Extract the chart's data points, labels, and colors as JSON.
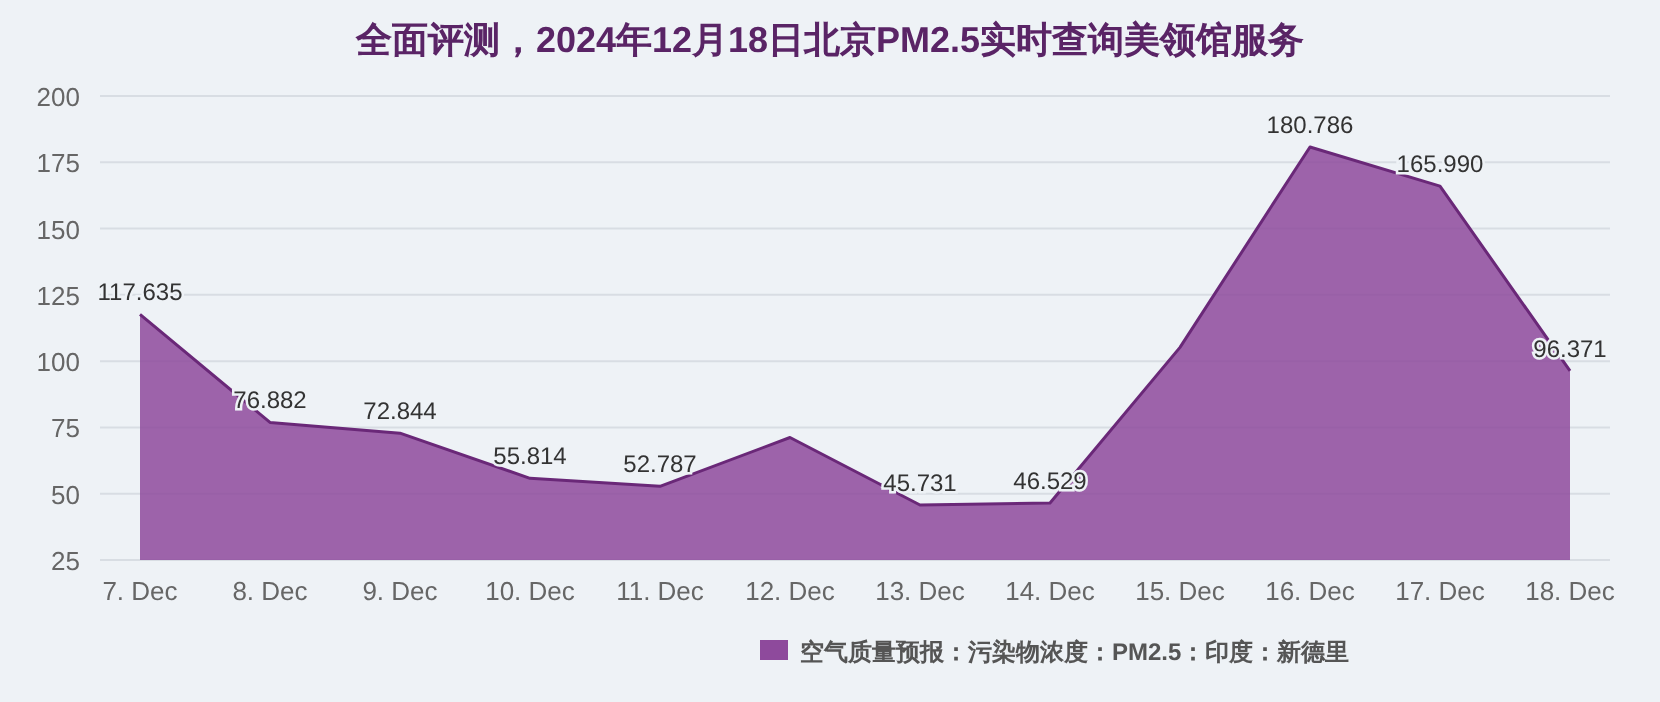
{
  "chart_data": {
    "type": "area",
    "title": "全面评测，2024年12月18日北京PM2.5实时查询美领馆服务",
    "categories": [
      "7. Dec",
      "8. Dec",
      "9. Dec",
      "10. Dec",
      "11. Dec",
      "12. Dec",
      "13. Dec",
      "14. Dec",
      "15. Dec",
      "16. Dec",
      "17. Dec",
      "18. Dec"
    ],
    "series": [
      {
        "name": "空气质量预报：污染物浓度：PM2.5：印度：新德里",
        "color": "#8e4a9c",
        "values": [
          117.635,
          76.882,
          72.844,
          55.814,
          52.787,
          71.2,
          45.731,
          46.529,
          105.2,
          180.786,
          165.99,
          96.371
        ],
        "value_labels": [
          "117.635",
          "76.882",
          "72.844",
          "55.814",
          "52.787",
          null,
          "45.731",
          "46.529",
          null,
          "180.786",
          "165.990",
          "96.371"
        ]
      }
    ],
    "ylim": [
      25,
      200
    ],
    "yticks": [
      25,
      50,
      75,
      100,
      125,
      150,
      175,
      200
    ],
    "grid": "y",
    "legend": "bottom"
  }
}
